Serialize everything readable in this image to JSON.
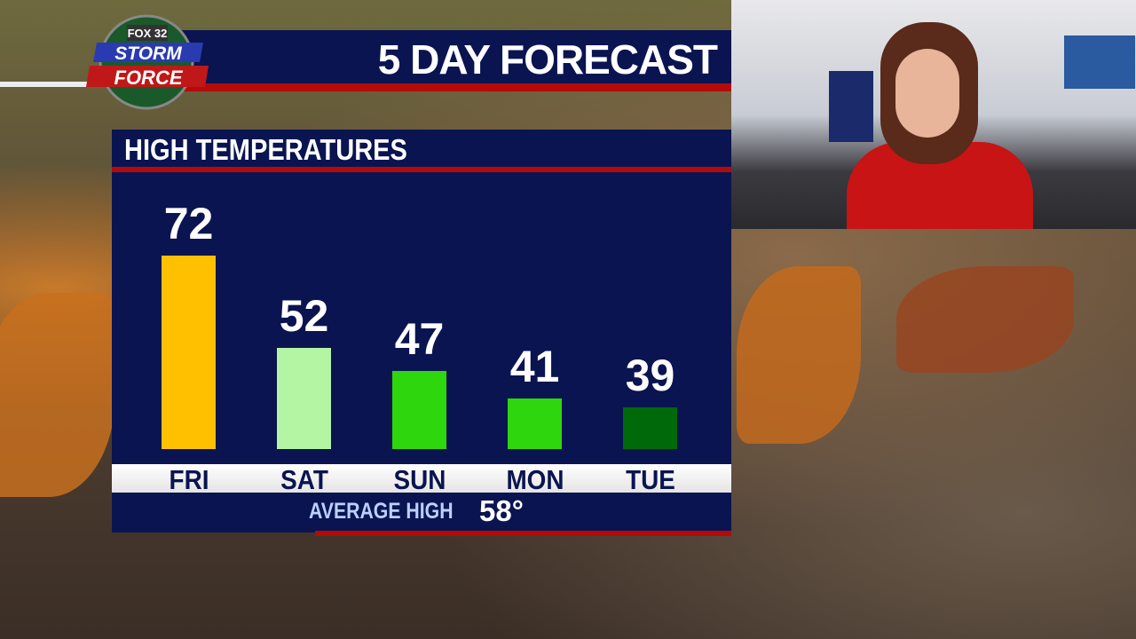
{
  "header": {
    "title": "5 DAY FORECAST",
    "logo": {
      "line1": "FOX 32",
      "line2": "STORM",
      "line3": "FORCE"
    }
  },
  "panel": {
    "title": "HIGH TEMPERATURES",
    "average_label": "AVERAGE HIGH",
    "average_value": "58°"
  },
  "chart_data": {
    "type": "bar",
    "title": "HIGH TEMPERATURES",
    "categories": [
      "FRI",
      "SAT",
      "SUN",
      "MON",
      "TUE"
    ],
    "values": [
      72,
      52,
      47,
      41,
      39
    ],
    "data_labels": [
      "72",
      "52",
      "47",
      "41",
      "39"
    ],
    "colors": [
      "#ffc000",
      "#b3f5a3",
      "#2ed60e",
      "#2ed60e",
      "#006a0a"
    ],
    "ylim": [
      30,
      80
    ],
    "grid": false,
    "annotation": "AVERAGE HIGH 58°"
  }
}
